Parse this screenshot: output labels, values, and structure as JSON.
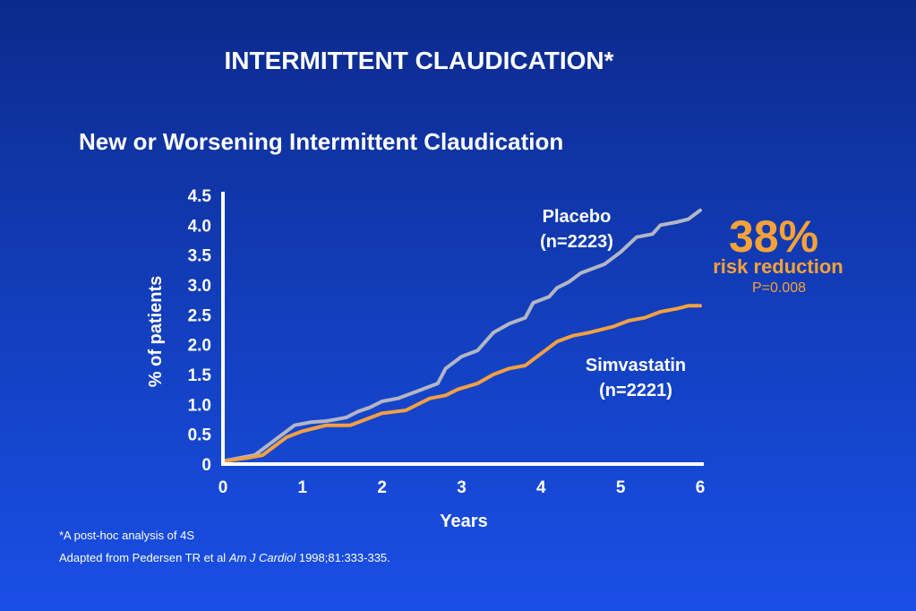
{
  "slide": {
    "title": "INTERMITTENT CLAUDICATION*",
    "subtitle": "New or Worsening Intermittent Claudication"
  },
  "annotation": {
    "big": "38%",
    "label": "risk reduction",
    "pvalue": "P=0.008"
  },
  "footnotes": {
    "line1": "*A post-hoc analysis of 4S",
    "line2_pre": "Adapted from Pedersen TR et al ",
    "line2_journal": "Am J Cardiol",
    "line2_post": " 1998;81:333-335."
  },
  "colors": {
    "placebo": "#b3b6c4",
    "simvastatin": "#f4a042",
    "accent": "#f6a238"
  },
  "chart_data": {
    "type": "line",
    "title": "New or Worsening Intermittent Claudication",
    "xlabel": "Years",
    "ylabel": "% of patients",
    "xlim": [
      0,
      6
    ],
    "ylim": [
      0,
      4.5
    ],
    "x_ticks": [
      "0",
      "1",
      "2",
      "3",
      "4",
      "5",
      "6"
    ],
    "y_ticks": [
      "0",
      "0.5",
      "1.0",
      "1.5",
      "2.0",
      "2.5",
      "3.0",
      "3.5",
      "4.0",
      "4.5"
    ],
    "grid": false,
    "series": [
      {
        "name": "Placebo",
        "label_lines": [
          "Placebo",
          "(n=2223)"
        ],
        "color": "#b3b6c4",
        "points": [
          [
            0,
            0.05
          ],
          [
            0.2,
            0.1
          ],
          [
            0.4,
            0.15
          ],
          [
            0.5,
            0.25
          ],
          [
            0.7,
            0.45
          ],
          [
            0.9,
            0.65
          ],
          [
            1.1,
            0.7
          ],
          [
            1.3,
            0.72
          ],
          [
            1.55,
            0.78
          ],
          [
            1.7,
            0.88
          ],
          [
            1.85,
            0.95
          ],
          [
            2.0,
            1.05
          ],
          [
            2.2,
            1.1
          ],
          [
            2.5,
            1.25
          ],
          [
            2.7,
            1.35
          ],
          [
            2.8,
            1.6
          ],
          [
            3.0,
            1.8
          ],
          [
            3.2,
            1.9
          ],
          [
            3.4,
            2.2
          ],
          [
            3.6,
            2.35
          ],
          [
            3.8,
            2.45
          ],
          [
            3.9,
            2.7
          ],
          [
            4.1,
            2.8
          ],
          [
            4.2,
            2.95
          ],
          [
            4.35,
            3.05
          ],
          [
            4.5,
            3.2
          ],
          [
            4.8,
            3.35
          ],
          [
            5.0,
            3.55
          ],
          [
            5.2,
            3.8
          ],
          [
            5.4,
            3.85
          ],
          [
            5.5,
            4.0
          ],
          [
            5.7,
            4.05
          ],
          [
            5.85,
            4.1
          ],
          [
            6.0,
            4.25
          ]
        ]
      },
      {
        "name": "Simvastatin",
        "label_lines": [
          "Simvastatin",
          "(n=2221)"
        ],
        "color": "#f4a042",
        "points": [
          [
            0,
            0.05
          ],
          [
            0.3,
            0.1
          ],
          [
            0.5,
            0.15
          ],
          [
            0.65,
            0.3
          ],
          [
            0.8,
            0.45
          ],
          [
            1.0,
            0.55
          ],
          [
            1.15,
            0.6
          ],
          [
            1.3,
            0.65
          ],
          [
            1.6,
            0.65
          ],
          [
            1.8,
            0.75
          ],
          [
            2.0,
            0.85
          ],
          [
            2.3,
            0.9
          ],
          [
            2.6,
            1.1
          ],
          [
            2.8,
            1.15
          ],
          [
            2.95,
            1.25
          ],
          [
            3.2,
            1.35
          ],
          [
            3.4,
            1.5
          ],
          [
            3.6,
            1.6
          ],
          [
            3.8,
            1.65
          ],
          [
            4.0,
            1.85
          ],
          [
            4.2,
            2.05
          ],
          [
            4.4,
            2.15
          ],
          [
            4.6,
            2.2
          ],
          [
            4.9,
            2.3
          ],
          [
            5.1,
            2.4
          ],
          [
            5.3,
            2.45
          ],
          [
            5.5,
            2.55
          ],
          [
            5.7,
            2.6
          ],
          [
            5.85,
            2.65
          ],
          [
            6.0,
            2.65
          ]
        ]
      }
    ]
  }
}
